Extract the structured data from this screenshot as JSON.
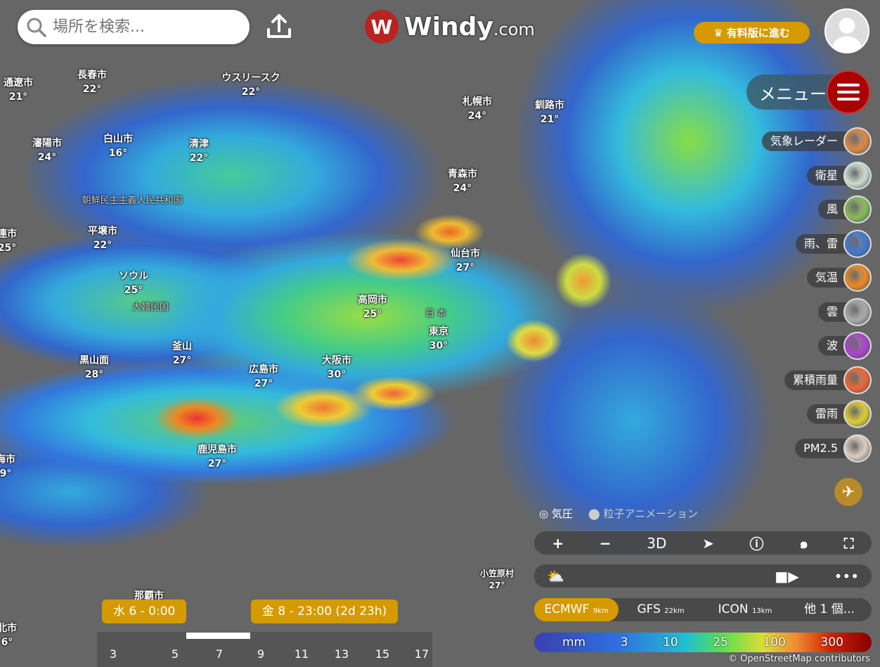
{
  "search": {
    "placeholder": "場所を検索..."
  },
  "logo": {
    "name": "Windy",
    "suffix": ".com"
  },
  "premium": {
    "label": "有料版に進む"
  },
  "menu": {
    "label": "メニュー"
  },
  "cities": [
    {
      "name": "通遼市",
      "temp": "21°"
    },
    {
      "name": "長春市",
      "temp": "22°"
    },
    {
      "name": "ウスリースク",
      "temp": "22°"
    },
    {
      "name": "瀋陽市",
      "temp": "24°"
    },
    {
      "name": "白山市",
      "temp": "16°"
    },
    {
      "name": "清津",
      "temp": "22°"
    },
    {
      "name": "平壌市",
      "temp": "22°"
    },
    {
      "name": "ソウル",
      "temp": "25°"
    },
    {
      "name": "釜山",
      "temp": "27°"
    },
    {
      "name": "黒山面",
      "temp": "28°"
    },
    {
      "name": "広島市",
      "temp": "27°"
    },
    {
      "name": "大阪市",
      "temp": "30°"
    },
    {
      "name": "高岡市",
      "temp": "25°"
    },
    {
      "name": "東京",
      "temp": "30°"
    },
    {
      "name": "仙台市",
      "temp": "27°"
    },
    {
      "name": "青森市",
      "temp": "24°"
    },
    {
      "name": "札幌市",
      "temp": "24°"
    },
    {
      "name": "釧路市",
      "temp": "21°"
    },
    {
      "name": "鹿児島市",
      "temp": "27°"
    },
    {
      "name": "小笠原村",
      "temp": "27°"
    },
    {
      "name": "那覇市",
      "temp": ""
    },
    {
      "name": "連市",
      "temp": "25°"
    },
    {
      "name": "海市",
      "temp": "9°"
    },
    {
      "name": "北市",
      "temp": "6°"
    }
  ],
  "countries": [
    "朝鮮民主主義人民共和国",
    "大韓民国",
    "日 本"
  ],
  "layers": [
    {
      "label": "気象レーダー",
      "color": "#d84"
    },
    {
      "label": "衛星",
      "color": "#cdc"
    },
    {
      "label": "風",
      "color": "#8b5"
    },
    {
      "label": "雨、雷",
      "color": "#47c"
    },
    {
      "label": "気温",
      "color": "#e82"
    },
    {
      "label": "雲",
      "color": "#aaa"
    },
    {
      "label": "波",
      "color": "#a4c"
    },
    {
      "label": "累積雨量",
      "color": "#e63"
    },
    {
      "label": "雷雨",
      "color": "#dc3"
    },
    {
      "label": "PM2.5",
      "color": "#dcb"
    }
  ],
  "toggles": {
    "pressure": "気圧",
    "particles": "粒子アニメーション"
  },
  "controls": {
    "plus": "+",
    "minus": "−",
    "threeD": "3D"
  },
  "models": [
    {
      "name": "ECMWF",
      "res": "9km",
      "active": true
    },
    {
      "name": "GFS",
      "res": "22km"
    },
    {
      "name": "ICON",
      "res": "13km"
    },
    {
      "name": "他 1 個...",
      "res": ""
    }
  ],
  "legend": {
    "unit": "mm",
    "values": [
      "3",
      "10",
      "25",
      "100",
      "300"
    ]
  },
  "attribution": "© OpenStreetMap contributors",
  "timeline": {
    "start": "水 6 - 0:00",
    "end": "金 8 - 23:00 (2d 23h)",
    "days": [
      "3",
      "5",
      "7",
      "9",
      "11",
      "13",
      "15",
      "17"
    ]
  },
  "colors": {
    "accent": "#d49a00",
    "menu": "#a00000"
  }
}
